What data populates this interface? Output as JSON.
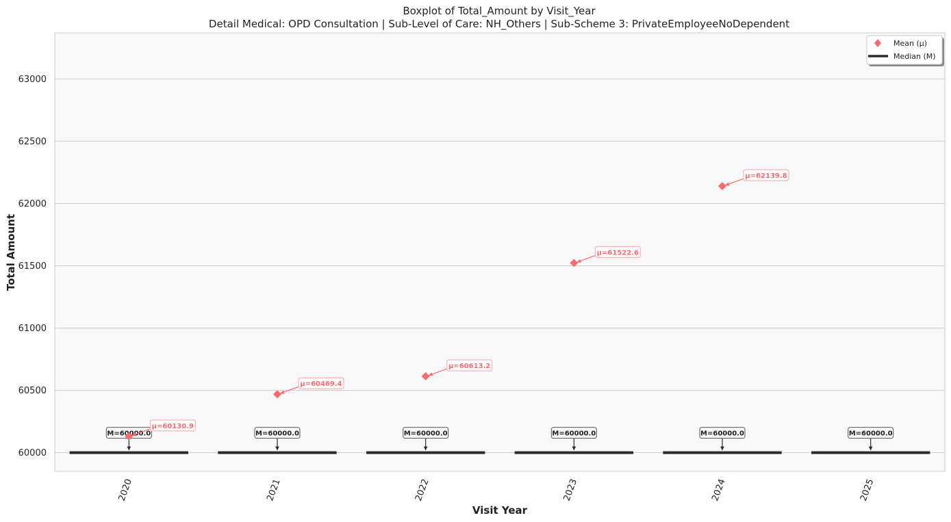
{
  "chart_data": {
    "type": "box",
    "title": "Boxplot of Total_Amount by Visit_Year",
    "subtitle": "Detail Medical: OPD Consultation | Sub-Level of Care: NH_Others | Sub-Scheme 3: PrivateEmployeeNoDependent",
    "xlabel": "Visit Year",
    "ylabel": "Total Amount",
    "ylim": [
      59850,
      63370
    ],
    "yticks": [
      60000,
      60500,
      61000,
      61500,
      62000,
      62500,
      63000
    ],
    "ytick_labels": [
      "60000",
      "60500",
      "61000",
      "61500",
      "62000",
      "62500",
      "63000"
    ],
    "grid": true,
    "categories": [
      "2020",
      "2021",
      "2022",
      "2023",
      "2024",
      "2025"
    ],
    "medians": [
      60000.0,
      60000.0,
      60000.0,
      60000.0,
      60000.0,
      60000.0
    ],
    "means": [
      60130.9,
      60469.4,
      60613.2,
      61522.6,
      62139.8,
      null
    ],
    "median_labels": [
      "M=60000.0",
      "M=60000.0",
      "M=60000.0",
      "M=60000.0",
      "M=60000.0",
      "M=60000.0"
    ],
    "mean_labels": [
      "μ=60130.9",
      "μ=60469.4",
      "μ=60613.2",
      "μ=61522.6",
      "μ=62139.8",
      null
    ],
    "legend": {
      "position": "upper right",
      "items": [
        {
          "label": "Mean (μ)",
          "marker": "diamond"
        },
        {
          "label": "Median (M)",
          "marker": "line"
        }
      ]
    },
    "colors": {
      "mean": "#f96a6e",
      "median": "#2b2b2b",
      "plot_bg": "#f8f8f8",
      "grid": "#cccccc"
    }
  }
}
